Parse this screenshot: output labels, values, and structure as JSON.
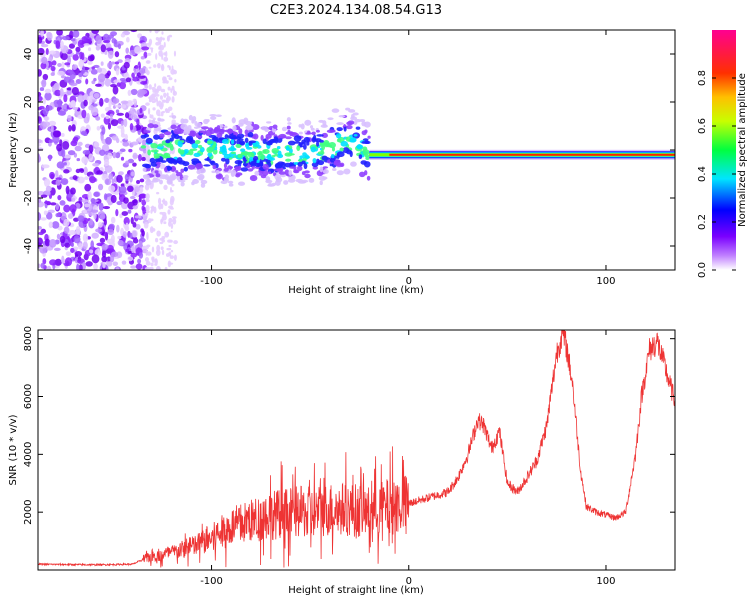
{
  "figure": {
    "title": "C2E3.2024.134.08.54.G13"
  },
  "chart_data": [
    {
      "type": "heatmap",
      "panel": "top",
      "xlabel": "Height of straight line (km)",
      "ylabel": "Frequency (Hz)",
      "xlim": [
        -188,
        135
      ],
      "ylim": [
        -50,
        50
      ],
      "xticks": [
        -100,
        0,
        100
      ],
      "yticks": [
        -40,
        -20,
        0,
        20,
        40
      ],
      "colorbar": {
        "label": "Normalized spectral amplitude",
        "range": [
          0,
          1
        ],
        "ticks": [
          0.0,
          0.2,
          0.4,
          0.6,
          0.8
        ],
        "colormap": [
          "#ffffff",
          "#7a00ff",
          "#0000ff",
          "#00e5ff",
          "#00ff00",
          "#ffff00",
          "#ff8000",
          "#ff0000",
          "#ff0080"
        ]
      },
      "dominant_frequency_track": [
        {
          "x": -135,
          "y": 0
        },
        {
          "x": -100,
          "y": 0
        },
        {
          "x": -50,
          "y": -2
        },
        {
          "x": -30,
          "y": 4
        },
        {
          "x": -20,
          "y": -2
        },
        {
          "x": 0,
          "y": -2
        },
        {
          "x": 50,
          "y": -2
        },
        {
          "x": 100,
          "y": -2
        },
        {
          "x": 135,
          "y": -2
        }
      ],
      "grid": false,
      "legend": "none"
    },
    {
      "type": "line",
      "panel": "bottom",
      "xlabel": "Height of straight line (km)",
      "ylabel": "SNR (10 * v/v)",
      "xlim": [
        -188,
        135
      ],
      "ylim": [
        0,
        8300
      ],
      "xticks": [
        -100,
        0,
        100
      ],
      "yticks": [
        2000,
        4000,
        6000,
        8000
      ],
      "color": "#ee3333",
      "series": [
        {
          "x": [
            -188,
            -160,
            -140,
            -130,
            -120,
            -110,
            -100,
            -90,
            -80,
            -70,
            -60,
            -50,
            -40,
            -30,
            -20,
            -10,
            0,
            10,
            20,
            25,
            30,
            35,
            38,
            42,
            46,
            50,
            55,
            60,
            65,
            70,
            75,
            78,
            80,
            83,
            87,
            90,
            95,
            100,
            105,
            110,
            115,
            118,
            122,
            126,
            130,
            135
          ],
          "y": [
            200,
            180,
            200,
            500,
            600,
            800,
            1100,
            1500,
            1700,
            1900,
            2000,
            2000,
            2100,
            2100,
            2000,
            2200,
            2300,
            2500,
            2700,
            3200,
            4000,
            5200,
            5000,
            4200,
            4800,
            3000,
            2700,
            3200,
            3800,
            5000,
            7500,
            8200,
            7700,
            6500,
            3500,
            2200,
            2000,
            1900,
            1800,
            2000,
            4000,
            6000,
            7600,
            7900,
            7000,
            5800
          ]
        }
      ],
      "grid": false,
      "legend": "none"
    }
  ]
}
